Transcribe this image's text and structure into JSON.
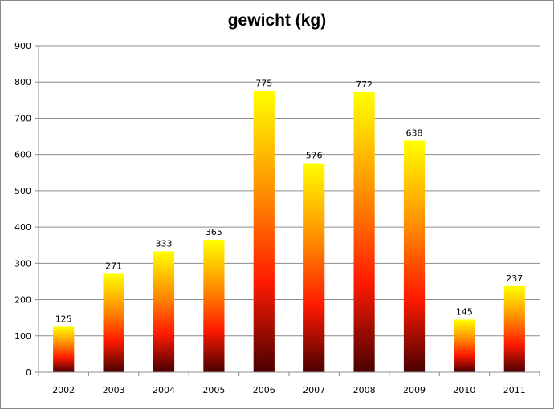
{
  "chart_data": {
    "type": "bar",
    "title": "gewicht (kg)",
    "xlabel": "",
    "ylabel": "",
    "categories": [
      "2002",
      "2003",
      "2004",
      "2005",
      "2006",
      "2007",
      "2008",
      "2009",
      "2010",
      "2011"
    ],
    "values": [
      125,
      271,
      333,
      365,
      775,
      576,
      772,
      638,
      145,
      237
    ],
    "data_labels": [
      "125",
      "271",
      "333",
      "365",
      "775",
      "576",
      "772",
      "638",
      "145",
      "237"
    ],
    "ylim": [
      0,
      900
    ],
    "yticks": [
      0,
      100,
      200,
      300,
      400,
      500,
      600,
      700,
      800,
      900
    ],
    "grid": true,
    "legend": "none",
    "bar_gradient": [
      "#ffff00",
      "#ff8800",
      "#ff1a00",
      "#4a0000"
    ]
  }
}
